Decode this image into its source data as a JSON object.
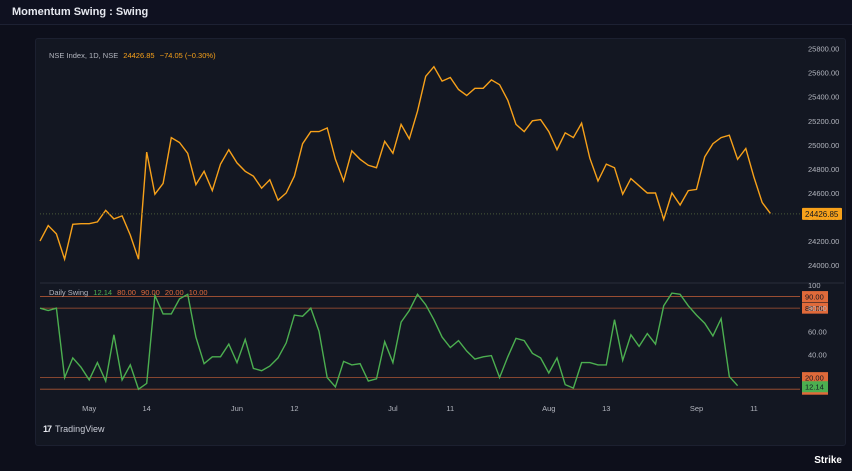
{
  "window": {
    "title": "Momentum Swing : Swing"
  },
  "branding": {
    "tradingview": "TradingView",
    "tradingview_icon": "17",
    "strike": "Strike"
  },
  "colors": {
    "price_line": "#f7a11a",
    "swing_line": "#4caf50",
    "threshold_lines": "#e06a3a",
    "background": "#131722",
    "text": "#b2b5be"
  },
  "chart_data": [
    {
      "type": "line",
      "legend": {
        "symbol": "NSE Index, 1D, NSE",
        "price": "24426.85",
        "change": "−74.05 (−0.30%)"
      },
      "y_ticks": [
        "25800.00",
        "25600.00",
        "25400.00",
        "25200.00",
        "25000.00",
        "24800.00",
        "24600.00",
        "24400.00",
        "24200.00",
        "24000.00"
      ],
      "ylim": [
        23960,
        25830
      ],
      "last_price_label": "24426.85",
      "last_price_value": 24426.85,
      "series": [
        {
          "values": [
            24200,
            24330,
            24260,
            24050,
            24340,
            24345,
            24345,
            24360,
            24455,
            24385,
            24410,
            24250,
            24050,
            24940,
            24590,
            24680,
            25060,
            25020,
            24930,
            24670,
            24780,
            24620,
            24840,
            24960,
            24850,
            24780,
            24740,
            24640,
            24710,
            24540,
            24600,
            24740,
            25010,
            25110,
            25110,
            25140,
            24880,
            24700,
            24950,
            24880,
            24830,
            24810,
            25030,
            24930,
            25170,
            25050,
            25280,
            25570,
            25650,
            25530,
            25560,
            25460,
            25410,
            25470,
            25470,
            25540,
            25500,
            25370,
            25170,
            25110,
            25200,
            25210,
            25110,
            24960,
            25100,
            25060,
            25180,
            24890,
            24700,
            24840,
            24810,
            24590,
            24720,
            24660,
            24600,
            24600,
            24380,
            24600,
            24500,
            24620,
            24630,
            24900,
            25010,
            25060,
            25080,
            24880,
            24970,
            24730,
            24520,
            24430
          ]
        }
      ],
      "x_ticks": [
        "May",
        "14",
        "Jun",
        "12",
        "Jul",
        "11",
        "Aug",
        "13",
        "Sep",
        "11"
      ],
      "x_tick_index": [
        6,
        13,
        24,
        31,
        43,
        50,
        62,
        69,
        80,
        87
      ],
      "xlim": [
        0,
        92
      ]
    },
    {
      "type": "line",
      "legend": {
        "name": "Daily Swing",
        "values": [
          "12.14",
          "80.00",
          "90.00",
          "20.00",
          "10.00"
        ]
      },
      "y_ticks": [
        "100",
        "80.00",
        "60.00",
        "40.00"
      ],
      "y_tick_values": [
        100,
        80,
        60,
        40
      ],
      "ylim": [
        5,
        100
      ],
      "levels": [
        {
          "label": "90.00",
          "value": 90
        },
        {
          "label": "80.00",
          "value": 80
        },
        {
          "label": "20.00",
          "value": 20
        },
        {
          "label": "10.00",
          "value": 10
        }
      ],
      "current_label": "12.14",
      "current_value": 12.14,
      "series": [
        {
          "values": [
            80,
            78,
            80,
            20,
            37,
            29,
            18,
            33,
            17,
            57,
            18,
            31,
            10,
            15,
            91,
            75,
            75,
            88,
            92,
            55,
            32,
            38,
            38,
            49,
            33,
            53,
            28,
            26,
            30,
            37,
            50,
            74,
            73,
            80,
            60,
            20,
            12,
            34,
            31,
            32,
            17,
            19,
            51,
            33,
            68,
            78,
            92,
            83,
            70,
            55,
            46,
            52,
            43,
            36,
            38,
            39,
            20,
            38,
            54,
            52,
            41,
            37,
            24,
            37,
            14,
            11,
            33,
            33,
            31,
            31,
            70,
            35,
            57,
            47,
            58,
            49,
            82,
            93,
            92,
            82,
            74,
            67,
            56,
            71,
            21,
            13
          ]
        }
      ],
      "xlim": [
        0,
        92
      ]
    }
  ]
}
